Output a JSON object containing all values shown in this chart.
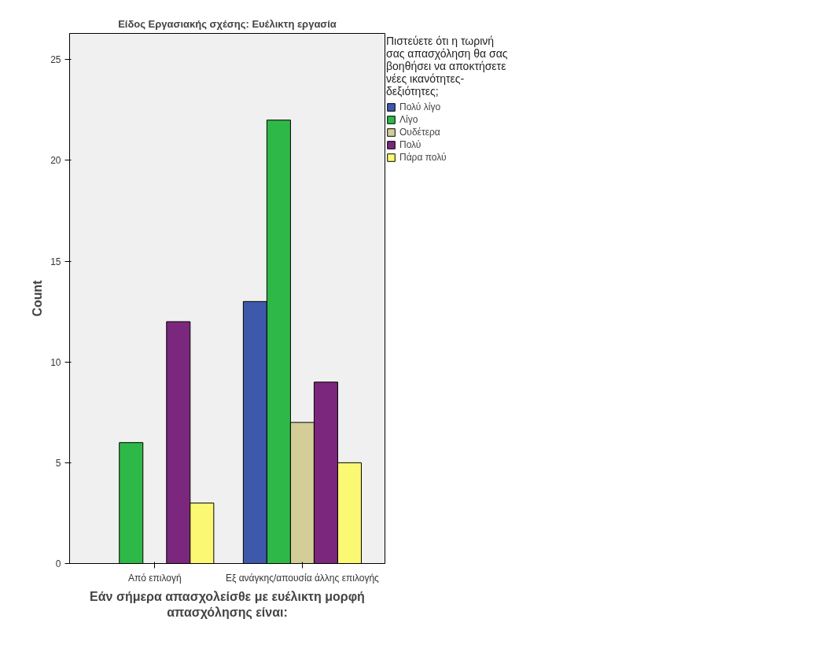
{
  "chart_data": {
    "type": "bar",
    "title": "Είδος Εργασιακής σχέσης: Ευέλικτη εργασία",
    "xlabel": "Εάν σήμερα απασχολείσθε με ευέλικτη μορφή απασχόλησης είναι:",
    "ylabel": "Count",
    "legend_title": "Πιστεύετε ότι η τωρινή σας απασχόληση θα σας βοηθήσει να αποκτήσετε νέες ικανότητες-δεξιότητες;",
    "categories": [
      "Από επιλογή",
      "Εξ ανάγκης/απουσία άλλης επιλογής"
    ],
    "series": [
      {
        "name": "Πολύ λίγο",
        "color": "#3e58ac",
        "values": [
          null,
          13
        ]
      },
      {
        "name": "Λίγο",
        "color": "#2eb848",
        "values": [
          6,
          22
        ]
      },
      {
        "name": "Ουδέτερα",
        "color": "#d3ce97",
        "values": [
          null,
          7
        ]
      },
      {
        "name": "Πολύ",
        "color": "#7b277d",
        "values": [
          12,
          9
        ]
      },
      {
        "name": "Πάρα πολύ",
        "color": "#fbf873",
        "values": [
          3,
          5
        ]
      }
    ],
    "ylim": [
      0,
      26.3
    ],
    "yticks": [
      0,
      5,
      10,
      15,
      20,
      25
    ],
    "grid": false,
    "legend": "right"
  }
}
